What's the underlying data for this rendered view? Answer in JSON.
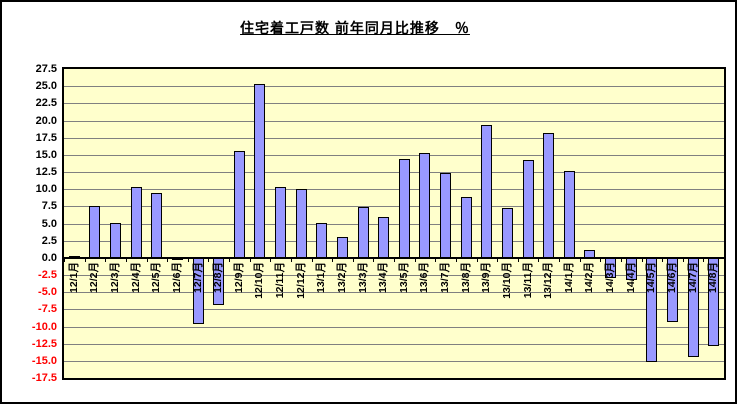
{
  "chart_data": {
    "type": "bar",
    "title": "住宅着工戸数 前年同月比推移　％",
    "xlabel": "",
    "ylabel": "%",
    "ylim": [
      -17.5,
      27.5
    ],
    "ytick_step": 2.5,
    "grid": true,
    "legend": "none",
    "categories": [
      "12/1月",
      "12/2月",
      "12/3月",
      "12/4月",
      "12/5月",
      "12/6月",
      "12/7月",
      "12/8月",
      "12/9月",
      "12/10月",
      "12/11月",
      "12/12月",
      "13/1月",
      "13/2月",
      "13/3月",
      "13/4月",
      "13/5月",
      "13/6月",
      "13/7月",
      "13/8月",
      "13/9月",
      "13/10月",
      "13/11月",
      "13/12月",
      "14/1月",
      "14/2月",
      "14/3月",
      "14/4月",
      "14/5月",
      "14/6月",
      "14/7月",
      "14/8月"
    ],
    "values": [
      0.3,
      7.6,
      5.1,
      10.3,
      9.5,
      -0.3,
      -9.6,
      -6.9,
      15.6,
      25.3,
      10.3,
      10.0,
      5.1,
      3.1,
      7.4,
      5.9,
      14.4,
      15.3,
      12.4,
      8.8,
      19.4,
      7.2,
      14.3,
      18.2,
      12.6,
      1.2,
      -2.9,
      -3.2,
      -15.1,
      -9.3,
      -14.4,
      -12.8
    ],
    "colors": {
      "bar_fill": "#9999FF",
      "bar_border": "#000000",
      "plot_background": "#FFFFCC",
      "gridline": "#808080",
      "axis": "#000000",
      "positive_tick_label": "#000000",
      "negative_tick_label": "#FF0000"
    }
  }
}
